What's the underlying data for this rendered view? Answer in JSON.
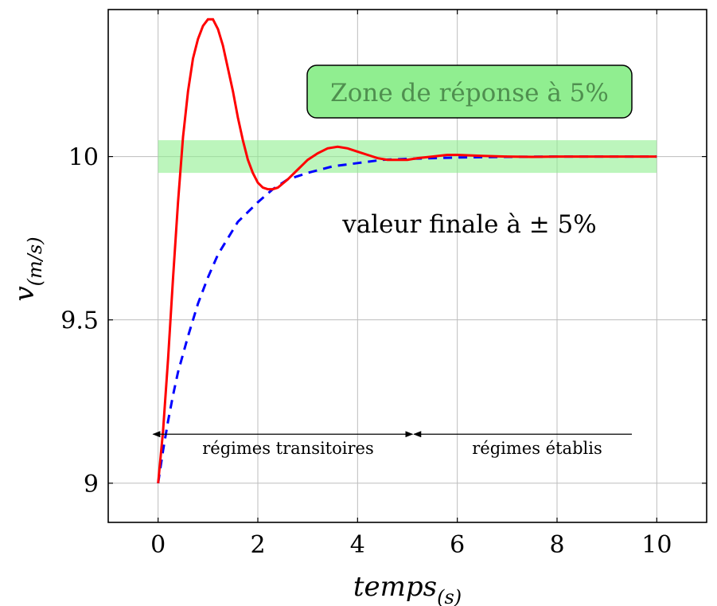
{
  "chart_data": {
    "type": "line",
    "xlabel": "temps",
    "xlabel_sub": "(s)",
    "ylabel": "v",
    "ylabel_sub": "(m/s)",
    "xlim": [
      -1,
      11
    ],
    "ylim": [
      8.88,
      10.45
    ],
    "x_ticks": [
      "0",
      "2",
      "4",
      "6",
      "8",
      "10"
    ],
    "y_ticks": [
      "9",
      "9.5",
      "10"
    ],
    "grid": true,
    "band": {
      "y_low": 9.95,
      "y_high": 10.05,
      "x_from": 0,
      "x_to": 10,
      "color": "#90ee90"
    },
    "series": [
      {
        "style": "solid",
        "color": "#ff0000",
        "x": [
          0,
          0.1,
          0.2,
          0.3,
          0.4,
          0.5,
          0.6,
          0.7,
          0.8,
          0.9,
          1.0,
          1.1,
          1.2,
          1.3,
          1.4,
          1.5,
          1.6,
          1.7,
          1.8,
          1.9,
          2.0,
          2.1,
          2.2,
          2.3,
          2.4,
          2.6,
          2.8,
          3.0,
          3.2,
          3.4,
          3.6,
          3.8,
          4.0,
          4.2,
          4.4,
          4.6,
          4.8,
          5.0,
          5.2,
          5.5,
          5.8,
          6.0,
          6.5,
          7.0,
          7.5,
          8.0,
          8.5,
          9.0,
          9.5,
          10.0
        ],
        "y": [
          9.0,
          9.16,
          9.38,
          9.63,
          9.86,
          10.06,
          10.2,
          10.3,
          10.36,
          10.4,
          10.42,
          10.42,
          10.39,
          10.34,
          10.27,
          10.2,
          10.12,
          10.05,
          9.99,
          9.95,
          9.92,
          9.905,
          9.9,
          9.9,
          9.905,
          9.93,
          9.96,
          9.99,
          10.01,
          10.025,
          10.03,
          10.025,
          10.015,
          10.005,
          9.995,
          9.99,
          9.99,
          9.99,
          9.995,
          10.0,
          10.005,
          10.005,
          10.002,
          10.0,
          9.999,
          10.0,
          10.0,
          10.0,
          10.0,
          10.0
        ]
      },
      {
        "style": "dashed",
        "color": "#0000ff",
        "x": [
          0,
          0.1,
          0.2,
          0.3,
          0.4,
          0.6,
          0.8,
          1.0,
          1.2,
          1.4,
          1.6,
          1.8,
          2.0,
          2.3,
          2.6,
          3.0,
          3.5,
          4.0,
          4.5,
          5.0,
          5.5,
          6.0,
          6.5,
          7.0,
          8.0,
          9.0,
          10.0
        ],
        "y": [
          9.0,
          9.1,
          9.19,
          9.27,
          9.34,
          9.45,
          9.55,
          9.63,
          9.7,
          9.75,
          9.8,
          9.83,
          9.86,
          9.9,
          9.93,
          9.95,
          9.97,
          9.98,
          9.99,
          9.993,
          9.995,
          9.997,
          9.998,
          9.999,
          10.0,
          10.0,
          10.0
        ]
      }
    ],
    "annotations": {
      "zone_label": "Zone de réponse à 5%",
      "final_value_label": "valeur finale à ± 5%",
      "transient_label": "régimes transitoires",
      "steady_label": "régimes établis",
      "arrow_y": 9.15,
      "transient_from_x": -0.1,
      "transient_to_x": 5.1,
      "steady_from_x": 5.1,
      "steady_to_x": 9.5
    }
  }
}
